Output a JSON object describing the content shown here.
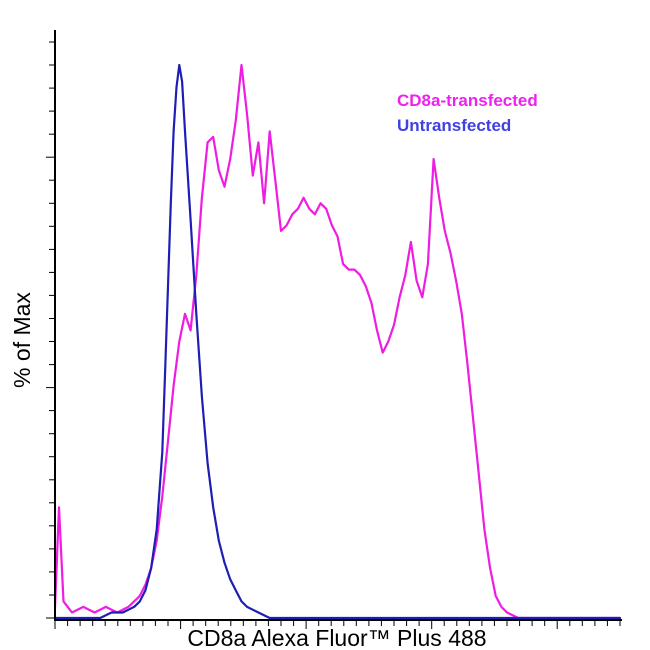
{
  "chart_data": {
    "type": "line",
    "title": "",
    "xlabel": "CD8a Alexa Fluor™ Plus 488",
    "ylabel": "% of Max",
    "xlim": [
      0,
      100
    ],
    "ylim": [
      0,
      100
    ],
    "grid": false,
    "legend_position": "upper-right-inside",
    "axes": {
      "x_tick_count": 46,
      "y_tick_count": 26
    },
    "series": [
      {
        "name": "CD8a-transfected",
        "color": "#EE1DE2",
        "legend_color": "#EE22EE",
        "points": [
          [
            0,
            2
          ],
          [
            0.7,
            20
          ],
          [
            1.5,
            3
          ],
          [
            3,
            1
          ],
          [
            5,
            2
          ],
          [
            7,
            1
          ],
          [
            9,
            2
          ],
          [
            11,
            1
          ],
          [
            13,
            2
          ],
          [
            15,
            4
          ],
          [
            16,
            6
          ],
          [
            17,
            9
          ],
          [
            18,
            14
          ],
          [
            19,
            22
          ],
          [
            20,
            32
          ],
          [
            21,
            42
          ],
          [
            22,
            50
          ],
          [
            23,
            55
          ],
          [
            24,
            52
          ],
          [
            25,
            62
          ],
          [
            26,
            76
          ],
          [
            27,
            86
          ],
          [
            28,
            87
          ],
          [
            29,
            81
          ],
          [
            30,
            78
          ],
          [
            31,
            83
          ],
          [
            32,
            90
          ],
          [
            33,
            100
          ],
          [
            34,
            91
          ],
          [
            35,
            80
          ],
          [
            36,
            86
          ],
          [
            37,
            75
          ],
          [
            38,
            88
          ],
          [
            39,
            79
          ],
          [
            40,
            70
          ],
          [
            41,
            71
          ],
          [
            42,
            73
          ],
          [
            43,
            74
          ],
          [
            44,
            76
          ],
          [
            45,
            74
          ],
          [
            46,
            73
          ],
          [
            47,
            75
          ],
          [
            48,
            74
          ],
          [
            49,
            71
          ],
          [
            50,
            69
          ],
          [
            51,
            64
          ],
          [
            52,
            63
          ],
          [
            53,
            63
          ],
          [
            54,
            62
          ],
          [
            55,
            60
          ],
          [
            56,
            57
          ],
          [
            57,
            52
          ],
          [
            58,
            48
          ],
          [
            59,
            50
          ],
          [
            60,
            53
          ],
          [
            61,
            58
          ],
          [
            62,
            62
          ],
          [
            63,
            68
          ],
          [
            64,
            61
          ],
          [
            65,
            58
          ],
          [
            66,
            64
          ],
          [
            67,
            83
          ],
          [
            68,
            76
          ],
          [
            69,
            70
          ],
          [
            70,
            66
          ],
          [
            71,
            61
          ],
          [
            72,
            55
          ],
          [
            73,
            46
          ],
          [
            74,
            36
          ],
          [
            75,
            26
          ],
          [
            76,
            16
          ],
          [
            77,
            9
          ],
          [
            78,
            4
          ],
          [
            79,
            2
          ],
          [
            80,
            1
          ],
          [
            82,
            0
          ],
          [
            100,
            0
          ]
        ]
      },
      {
        "name": "Untransfected",
        "color": "#1E1EB4",
        "legend_color": "#4141E0",
        "points": [
          [
            0,
            0
          ],
          [
            8,
            0
          ],
          [
            10,
            1
          ],
          [
            12,
            1
          ],
          [
            14,
            2
          ],
          [
            15,
            3
          ],
          [
            16,
            5
          ],
          [
            17,
            9
          ],
          [
            18,
            16
          ],
          [
            19,
            30
          ],
          [
            19.5,
            45
          ],
          [
            20,
            60
          ],
          [
            20.5,
            75
          ],
          [
            21,
            88
          ],
          [
            21.5,
            96
          ],
          [
            22,
            100
          ],
          [
            22.5,
            97
          ],
          [
            23,
            88
          ],
          [
            24,
            72
          ],
          [
            25,
            55
          ],
          [
            26,
            40
          ],
          [
            27,
            28
          ],
          [
            28,
            20
          ],
          [
            29,
            14
          ],
          [
            30,
            10
          ],
          [
            31,
            7
          ],
          [
            32,
            5
          ],
          [
            33,
            3
          ],
          [
            34,
            2
          ],
          [
            36,
            1
          ],
          [
            38,
            0
          ],
          [
            100,
            0
          ]
        ]
      }
    ]
  }
}
